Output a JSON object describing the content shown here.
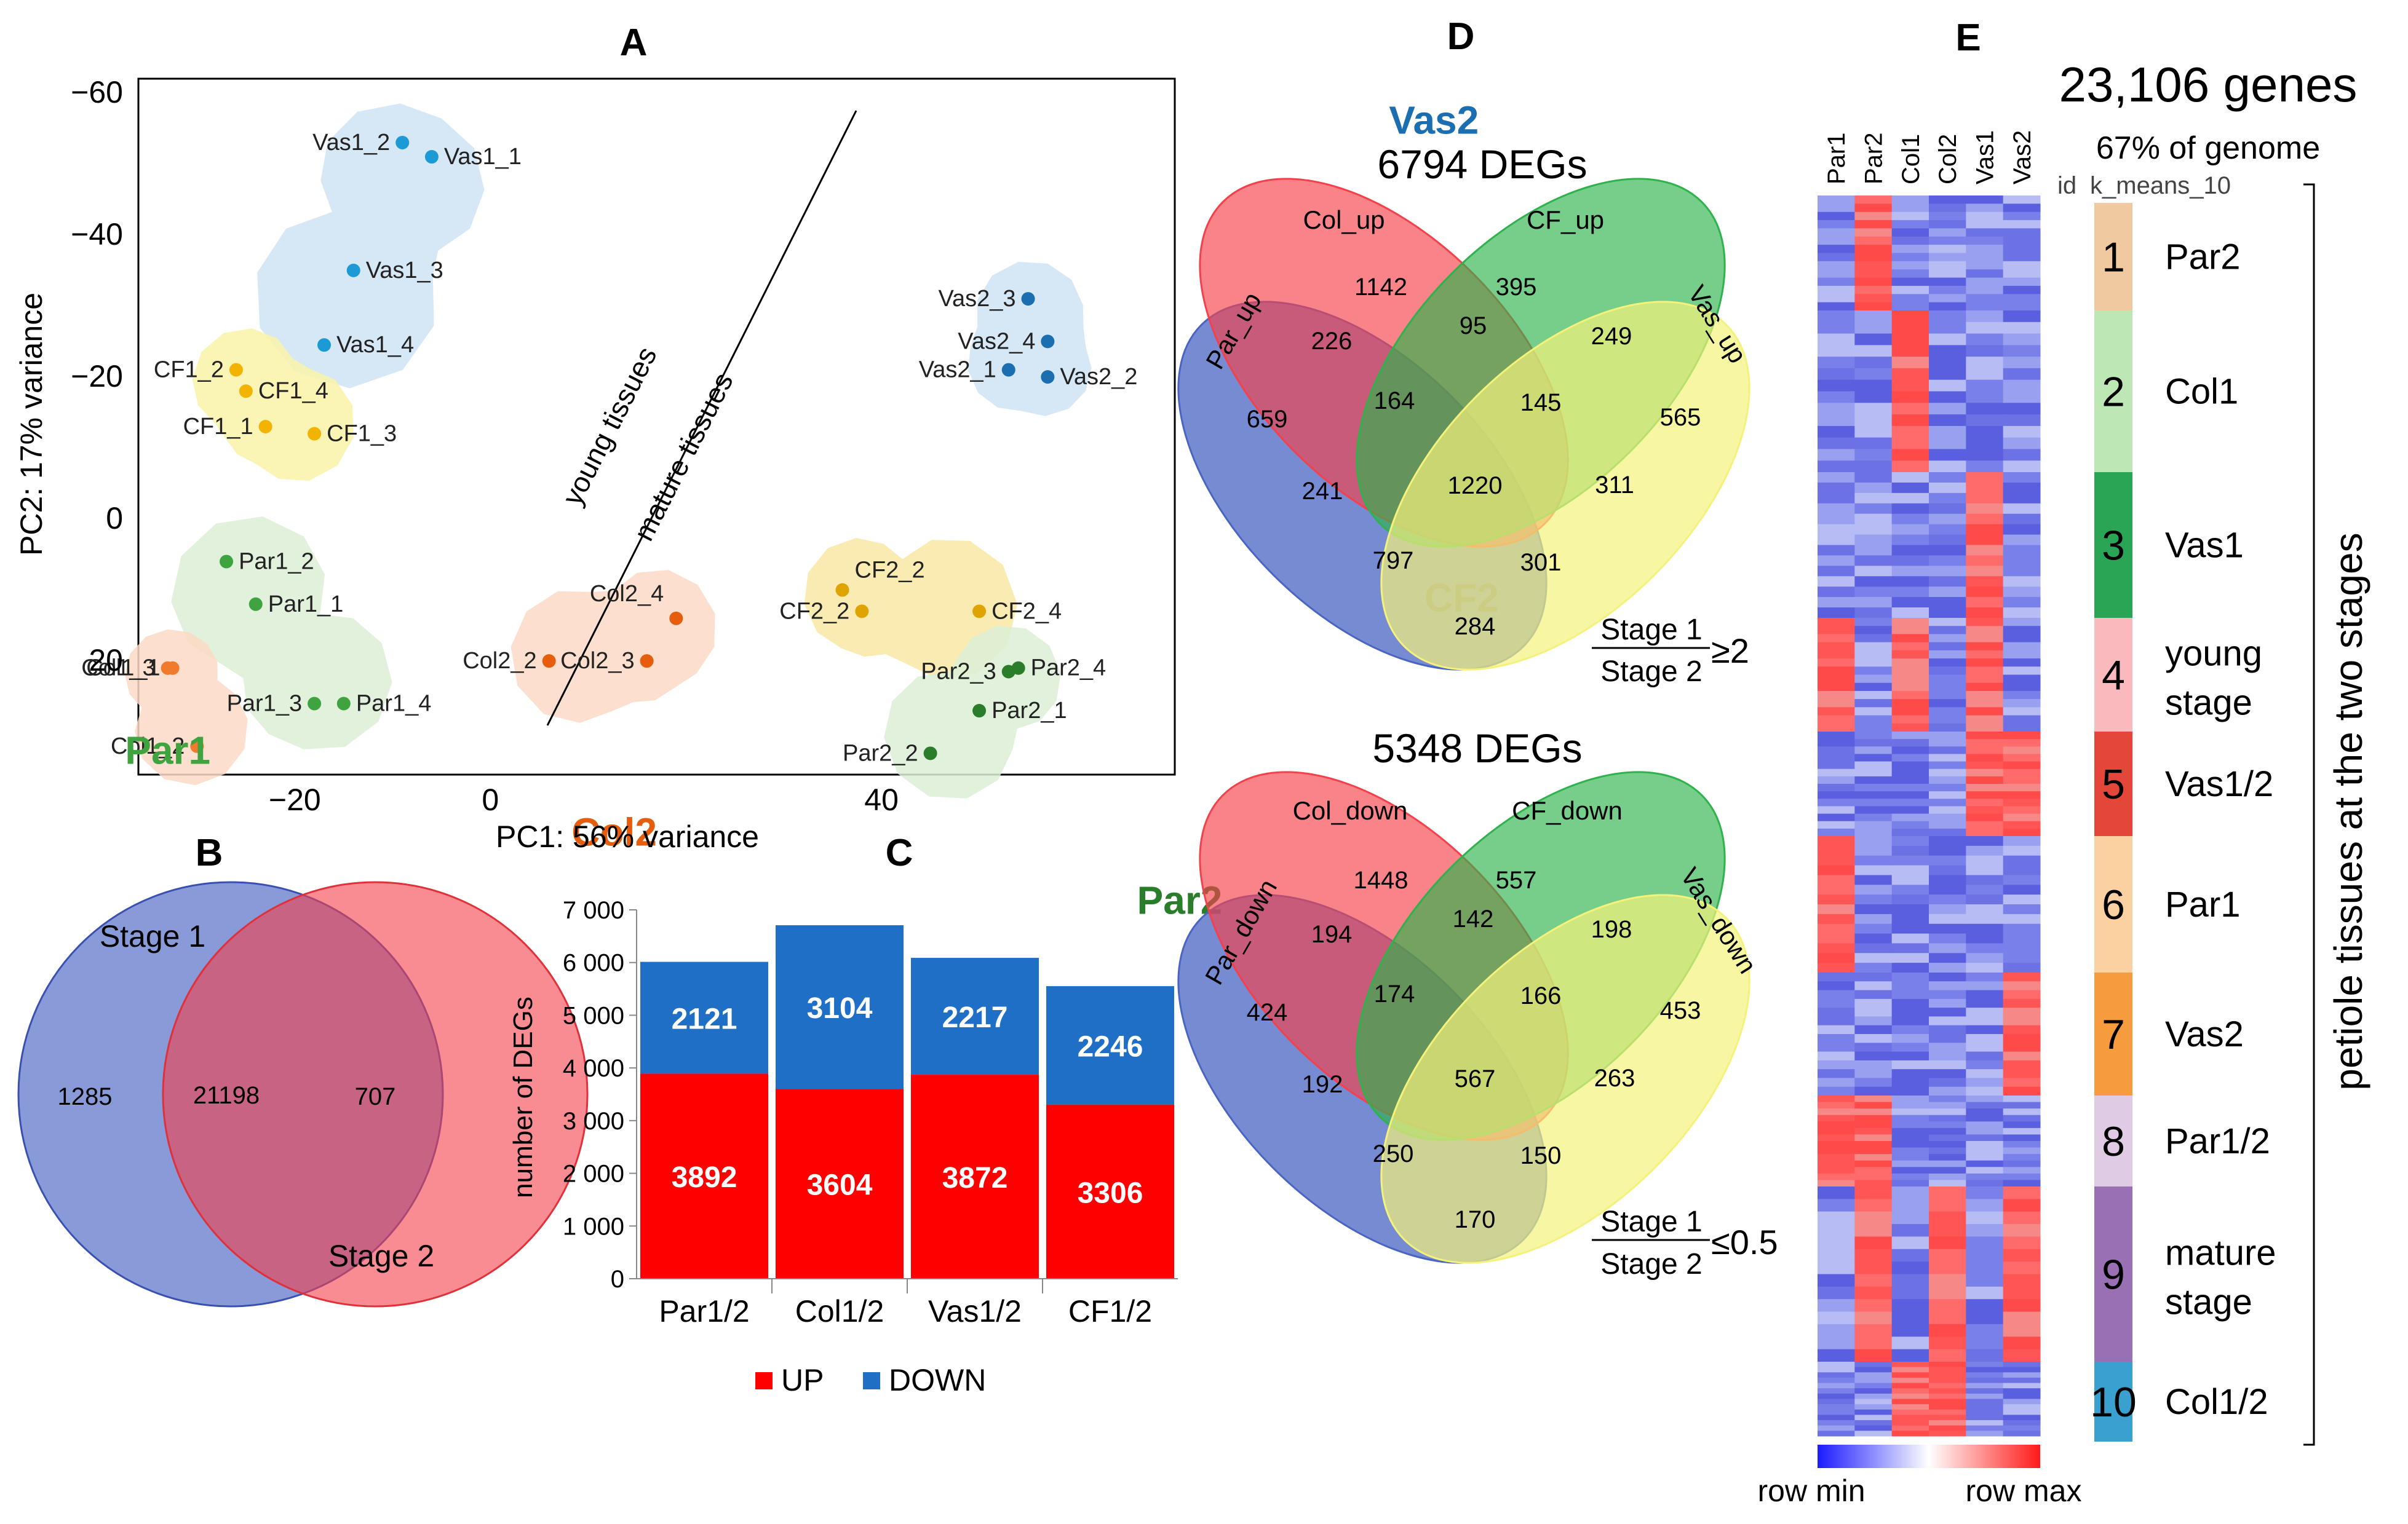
{
  "panels": {
    "a": {
      "label": "A",
      "xlabel": "PC1: 56% variance",
      "ylabel": "PC2: 17% variance",
      "xticks": [
        "−20",
        "0",
        "40"
      ],
      "yticks": [
        "−60",
        "−40",
        "−20",
        "0",
        "20"
      ],
      "young_label": "young tissues",
      "mature_label": "mature tissues"
    },
    "b": {
      "label": "B"
    },
    "c": {
      "label": "C"
    },
    "d": {
      "label": "D",
      "up_title": "6794 DEGs",
      "down_title": "5348 DEGs",
      "up_ratio_num": "Stage 1",
      "up_ratio_den": "Stage 2",
      "up_ratio_op": "≥2",
      "down_ratio_num": "Stage 1",
      "down_ratio_den": "Stage 2",
      "down_ratio_op": "≤0.5"
    },
    "e": {
      "label": "E",
      "genes_title": "23,106 genes",
      "genome_pct": "67% of genome",
      "id_header": "id",
      "kmeans_header": "k_means_10",
      "side_title": "petiole tissues at the two stages",
      "scale_min": "row min",
      "scale_max": "row max"
    }
  },
  "chart_data": [
    {
      "type": "scatter",
      "panel": "A",
      "xlabel": "PC1: 56% variance",
      "ylabel": "PC2: 17% variance",
      "xlim": [
        -36,
        70
      ],
      "ylim": [
        -62,
        36
      ],
      "y_inverted": true,
      "groups": [
        {
          "name": "Vas1",
          "color": "#1b9ad6",
          "points": [
            {
              "label": "Vas1_2",
              "x": -9,
              "y": -53
            },
            {
              "label": "Vas1_1",
              "x": -6,
              "y": -51
            },
            {
              "label": "Vas1_3",
              "x": -14,
              "y": -35
            },
            {
              "label": "Vas1_4",
              "x": -17,
              "y": -24.5
            }
          ]
        },
        {
          "name": "CF1",
          "color": "#f2b400",
          "points": [
            {
              "label": "CF1_2",
              "x": -26,
              "y": -21
            },
            {
              "label": "CF1_4",
              "x": -25,
              "y": -18
            },
            {
              "label": "CF1_1",
              "x": -23,
              "y": -13
            },
            {
              "label": "CF1_3",
              "x": -18,
              "y": -12
            }
          ]
        },
        {
          "name": "Par1",
          "color": "#3fa33f",
          "points": [
            {
              "label": "Par1_2",
              "x": -27,
              "y": 6
            },
            {
              "label": "Par1_1",
              "x": -24,
              "y": 12
            },
            {
              "label": "Par1_3",
              "x": -18,
              "y": 26
            },
            {
              "label": "Par1_4",
              "x": -15,
              "y": 26
            }
          ]
        },
        {
          "name": "Col1",
          "color": "#f07b2c",
          "points": [
            {
              "label": "Col1_3",
              "x": -33,
              "y": 21
            },
            {
              "label": "Col1_1",
              "x": -32.5,
              "y": 21
            },
            {
              "label": "Col1_2",
              "x": -30,
              "y": 32
            }
          ]
        },
        {
          "name": "Vas2",
          "color": "#1b6fb0",
          "points": [
            {
              "label": "Vas2_3",
              "x": 55,
              "y": -31
            },
            {
              "label": "Vas2_4",
              "x": 57,
              "y": -25
            },
            {
              "label": "Vas2_1",
              "x": 53,
              "y": -21
            },
            {
              "label": "Vas2_2",
              "x": 57,
              "y": -20
            }
          ]
        },
        {
          "name": "CF2",
          "color": "#e0a400",
          "points": [
            {
              "label": "CF2_2",
              "x": 36,
              "y": 10
            },
            {
              "label": "CF2_2",
              "x": 38,
              "y": 13
            },
            {
              "label": "CF2_4",
              "x": 50,
              "y": 13
            }
          ]
        },
        {
          "name": "Col2",
          "color": "#e65e0d",
          "points": [
            {
              "label": "Col2_4",
              "x": 19,
              "y": 14
            },
            {
              "label": "Col2_2",
              "x": 6,
              "y": 20
            },
            {
              "label": "Col2_3",
              "x": 16,
              "y": 20
            }
          ]
        },
        {
          "name": "Par2",
          "color": "#2a7d2a",
          "points": [
            {
              "label": "Par2_4",
              "x": 54,
              "y": 21
            },
            {
              "label": "Par2_3",
              "x": 53,
              "y": 21.5
            },
            {
              "label": "Par2_1",
              "x": 50,
              "y": 27
            },
            {
              "label": "Par2_2",
              "x": 45,
              "y": 33
            }
          ]
        }
      ]
    },
    {
      "type": "venn",
      "panel": "B",
      "sets": [
        "Stage 1",
        "Stage 2"
      ],
      "only_a": "1285",
      "both": "21198",
      "only_b": "707"
    },
    {
      "type": "bar",
      "panel": "C",
      "stacked": true,
      "categories": [
        "Par1/2",
        "Col1/2",
        "Vas1/2",
        "CF1/2"
      ],
      "series": [
        {
          "name": "UP",
          "color": "#ff0000",
          "values": [
            3892,
            3604,
            3872,
            3306
          ]
        },
        {
          "name": "DOWN",
          "color": "#1f6fc7",
          "values": [
            2121,
            3104,
            2217,
            2246
          ]
        }
      ],
      "ylabel": "number of DEGs",
      "ylim": [
        0,
        7000
      ],
      "yticks": [
        "0",
        "1 000",
        "2 000",
        "3 000",
        "4 000",
        "5 000",
        "6 000",
        "7 000"
      ]
    },
    {
      "type": "venn",
      "panel": "D",
      "title": "6794 DEGs",
      "sets": [
        "Par_up",
        "Col_up",
        "CF_up",
        "Vas_up"
      ],
      "regions": {
        "col_only": "1142",
        "cf_only": "395",
        "par_col": "226",
        "col_cf": "95",
        "cf_vas": "249",
        "par_only": "659",
        "par_col_cf": "164",
        "col_cf_vas": "145",
        "vas_only": "565",
        "all": "1220",
        "par_cf": "241",
        "col_vas": "311",
        "par_cf_vas": "797",
        "par_col_vas": "301",
        "par_vas": "284"
      }
    },
    {
      "type": "venn",
      "panel": "D",
      "title": "5348 DEGs",
      "sets": [
        "Par_down",
        "Col_down",
        "CF_down",
        "Vas_down"
      ],
      "regions": {
        "col_only": "1448",
        "cf_only": "557",
        "par_col": "194",
        "col_cf": "142",
        "cf_vas": "198",
        "par_only": "424",
        "par_col_cf": "174",
        "col_cf_vas": "166",
        "vas_only": "453",
        "all": "567",
        "par_cf": "192",
        "col_vas": "263",
        "par_cf_vas": "250",
        "par_col_vas": "150",
        "par_vas": "170"
      }
    },
    {
      "type": "heatmap",
      "panel": "E",
      "columns": [
        "Par1",
        "Par2",
        "Col1",
        "Col2",
        "Vas1",
        "Vas2"
      ],
      "clusters": [
        {
          "id": "1",
          "label": "Par2",
          "color": "#f1c9a0",
          "high": [
            1
          ]
        },
        {
          "id": "2",
          "label": "Col1",
          "color": "#bde8b5",
          "high": [
            2
          ]
        },
        {
          "id": "3",
          "label": "Vas1",
          "color": "#2aa556",
          "high": [
            4
          ]
        },
        {
          "id": "4",
          "label": "young stage",
          "color": "#f9b9bd",
          "high": [
            0,
            2,
            4
          ]
        },
        {
          "id": "5",
          "label": "Vas1/2",
          "color": "#e5463a",
          "high": [
            4,
            5
          ]
        },
        {
          "id": "6",
          "label": "Par1",
          "color": "#fcd1a2",
          "high": [
            0
          ]
        },
        {
          "id": "7",
          "label": "Vas2",
          "color": "#f79c3e",
          "high": [
            5
          ]
        },
        {
          "id": "8",
          "label": "Par1/2",
          "color": "#dfcbe3",
          "high": [
            0,
            1
          ]
        },
        {
          "id": "9",
          "label": "mature stage",
          "color": "#9a70b4",
          "high": [
            1,
            3,
            5
          ]
        },
        {
          "id": "10",
          "label": "Col1/2",
          "color": "#3aa0cf",
          "high": [
            2,
            3
          ]
        }
      ]
    }
  ]
}
